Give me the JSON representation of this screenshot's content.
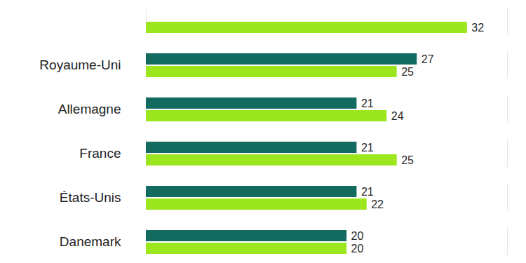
{
  "chart_data": {
    "type": "bar",
    "orientation": "horizontal",
    "categories": [
      null,
      "Royaume-Uni",
      "Allemagne",
      "France",
      "États-Unis",
      "Danemark"
    ],
    "series": [
      {
        "color": "#136b5f",
        "values": [
          null,
          27,
          21,
          21,
          21,
          20
        ]
      },
      {
        "color": "#9be61c",
        "values": [
          32,
          25,
          24,
          25,
          22,
          20
        ]
      }
    ],
    "xlim": [
      0,
      36
    ],
    "xticks": [],
    "tick_labels": "y",
    "data_labels": true,
    "grid": false
  }
}
